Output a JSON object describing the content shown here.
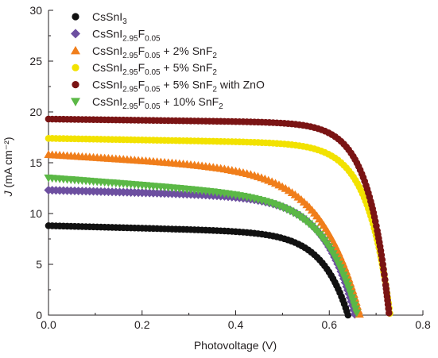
{
  "chart_data": {
    "type": "scatter",
    "xlabel": "Photovoltage (V)",
    "ylabel": "J (mA cm⁻²)",
    "xlim": [
      0,
      0.8
    ],
    "ylim": [
      0,
      30
    ],
    "xticks": [
      "0.0",
      "0.2",
      "0.4",
      "0.6",
      "0.8"
    ],
    "yticks": [
      "0",
      "5",
      "10",
      "15",
      "20",
      "25",
      "30"
    ],
    "legend_position": "top-left",
    "series": [
      {
        "name": "CsSnI3",
        "marker": "circle",
        "color": "#111111",
        "jsc": 8.8,
        "slope": 1.2,
        "voc": 0.64,
        "c": 0.055,
        "legend_parts": [
          [
            "CsSnI",
            "n"
          ],
          [
            "3",
            "sub"
          ]
        ]
      },
      {
        "name": "CsSnI2.95F0.05",
        "marker": "diamond",
        "color": "#6d4fa0",
        "jsc": 12.3,
        "slope": 1.2,
        "voc": 0.655,
        "c": 0.065,
        "legend_parts": [
          [
            "CsSnI",
            "n"
          ],
          [
            "2.95",
            "sub"
          ],
          [
            "F",
            "n"
          ],
          [
            "0.05",
            "sub"
          ]
        ]
      },
      {
        "name": "CsSnI2.95F0.05 + 2% SnF2",
        "marker": "triangle",
        "color": "#f07e1b",
        "jsc": 15.8,
        "slope": 2.8,
        "voc": 0.665,
        "c": 0.08,
        "legend_parts": [
          [
            "CsSnI",
            "n"
          ],
          [
            "2.95",
            "sub"
          ],
          [
            "F",
            "n"
          ],
          [
            "0.05",
            "sub"
          ],
          [
            " + 2% SnF",
            "n"
          ],
          [
            "2",
            "sub"
          ]
        ]
      },
      {
        "name": "CsSnI2.95F0.05 + 5% SnF2",
        "marker": "circle",
        "color": "#f2e200",
        "jsc": 17.4,
        "slope": 0.8,
        "voc": 0.73,
        "c": 0.048,
        "legend_parts": [
          [
            "CsSnI",
            "n"
          ],
          [
            "2.95",
            "sub"
          ],
          [
            "F",
            "n"
          ],
          [
            "0.05",
            "sub"
          ],
          [
            " + 5% SnF",
            "n"
          ],
          [
            "2",
            "sub"
          ]
        ]
      },
      {
        "name": "CsSnI2.95F0.05 + 5% SnF2 with ZnO",
        "marker": "circle",
        "color": "#7a1414",
        "jsc": 19.3,
        "slope": 0.6,
        "voc": 0.728,
        "c": 0.044,
        "legend_parts": [
          [
            "CsSnI",
            "n"
          ],
          [
            "2.95",
            "sub"
          ],
          [
            "F",
            "n"
          ],
          [
            "0.05",
            "sub"
          ],
          [
            " + 5% SnF",
            "n"
          ],
          [
            "2",
            "sub"
          ],
          [
            " with ZnO",
            "n"
          ]
        ]
      },
      {
        "name": "CsSnI2.95F0.05 + 10% SnF2",
        "marker": "triangle-down",
        "color": "#5bb846",
        "jsc": 13.5,
        "slope": 3.5,
        "voc": 0.66,
        "c": 0.07,
        "legend_parts": [
          [
            "CsSnI",
            "n"
          ],
          [
            "2.95",
            "sub"
          ],
          [
            "F",
            "n"
          ],
          [
            "0.05",
            "sub"
          ],
          [
            " + 10% SnF",
            "n"
          ],
          [
            "2",
            "sub"
          ]
        ]
      }
    ]
  }
}
